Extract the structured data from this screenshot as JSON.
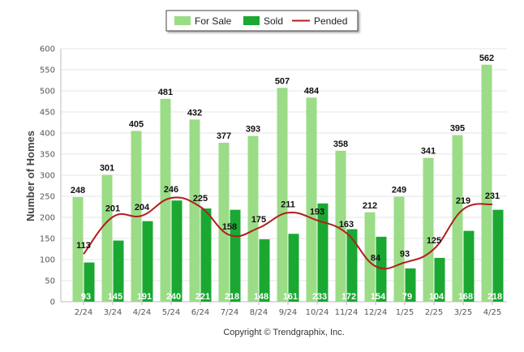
{
  "chart_data": {
    "type": "bar",
    "categories": [
      "2/24",
      "3/24",
      "4/24",
      "5/24",
      "6/24",
      "7/24",
      "8/24",
      "9/24",
      "10/24",
      "11/24",
      "12/24",
      "1/25",
      "2/25",
      "3/25",
      "4/25"
    ],
    "series": [
      {
        "name": "For Sale",
        "kind": "bar",
        "color": "#9bdc87",
        "values": [
          248,
          301,
          405,
          481,
          432,
          377,
          393,
          507,
          484,
          358,
          212,
          249,
          341,
          395,
          562
        ]
      },
      {
        "name": "Sold",
        "kind": "bar",
        "color": "#1aa832",
        "values": [
          93,
          145,
          191,
          240,
          221,
          218,
          148,
          161,
          233,
          172,
          154,
          79,
          104,
          168,
          218
        ]
      },
      {
        "name": "Pended",
        "kind": "line",
        "color": "#b21e1e",
        "values": [
          113,
          201,
          204,
          246,
          225,
          158,
          175,
          211,
          193,
          163,
          84,
          93,
          125,
          219,
          231
        ]
      }
    ],
    "ylabel": "Number of Homes",
    "xlabel": "",
    "ylim": [
      0,
      600
    ],
    "yticks": [
      0,
      50,
      100,
      150,
      200,
      250,
      300,
      350,
      400,
      450,
      500,
      550,
      600
    ],
    "grid": true,
    "legend_position": "top-center"
  },
  "footer": {
    "credit": "Copyright © Trendgraphix, Inc."
  }
}
